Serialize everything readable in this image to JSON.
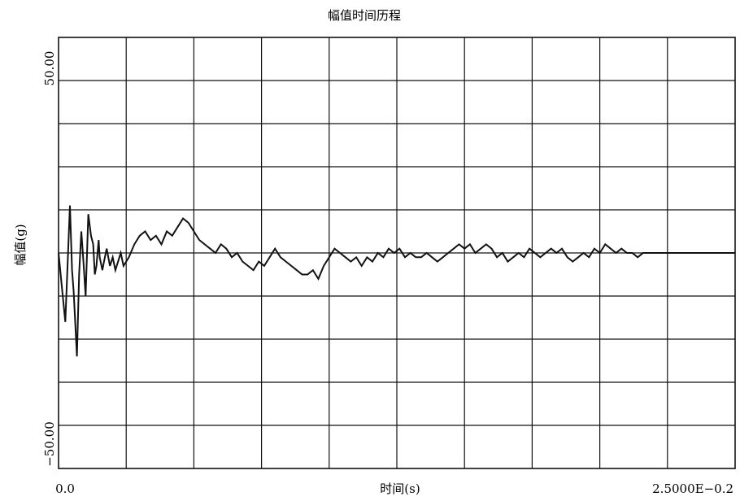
{
  "chart_data": {
    "type": "line",
    "title": "幅值时间历程",
    "xlabel": "时间(s)",
    "ylabel": "幅值(g)",
    "x_tick_labels": [
      "0.0",
      "2.5000E−0.2"
    ],
    "y_tick_labels": [
      "50.00",
      "−50.00"
    ],
    "xlim": [
      0,
      0.025
    ],
    "ylim": [
      -50,
      50
    ],
    "grid": true,
    "x_divisions": 10,
    "y_divisions": 10,
    "line_color": "#111111",
    "series": [
      {
        "x": [
          0.0,
          0.00025,
          0.0003,
          0.00042,
          0.0005,
          0.00056,
          0.00068,
          0.00076,
          0.00084,
          0.00092,
          0.001,
          0.0011,
          0.0012,
          0.00128,
          0.00134,
          0.0014,
          0.00148,
          0.00152,
          0.00162,
          0.00168,
          0.00178,
          0.0019,
          0.002,
          0.0021,
          0.0022,
          0.0023,
          0.0024,
          0.0025,
          0.0026,
          0.0028,
          0.003,
          0.0032,
          0.0034,
          0.0036,
          0.0038,
          0.004,
          0.0042,
          0.0044,
          0.0046,
          0.0048,
          0.005,
          0.0052,
          0.0054,
          0.0056,
          0.0058,
          0.006,
          0.0062,
          0.0064,
          0.0066,
          0.0068,
          0.007,
          0.0072,
          0.0074,
          0.0076,
          0.0078,
          0.008,
          0.0082,
          0.0084,
          0.0086,
          0.0088,
          0.009,
          0.0092,
          0.0094,
          0.0096,
          0.0098,
          0.01,
          0.0102,
          0.0104,
          0.0106,
          0.0108,
          0.011,
          0.0112,
          0.0114,
          0.0116,
          0.0118,
          0.012,
          0.0122,
          0.0124,
          0.0126,
          0.0128,
          0.013,
          0.0132,
          0.0134,
          0.0136,
          0.0138,
          0.014,
          0.0142,
          0.0144,
          0.0146,
          0.0148,
          0.015,
          0.0152,
          0.0154,
          0.0156,
          0.0158,
          0.016,
          0.0162,
          0.0164,
          0.0166,
          0.0168,
          0.017,
          0.0172,
          0.0174,
          0.0176,
          0.0178,
          0.018,
          0.0182,
          0.0184,
          0.0186,
          0.0188,
          0.019,
          0.0192,
          0.0194,
          0.0196,
          0.0198,
          0.02,
          0.0202,
          0.0204,
          0.0206,
          0.0208,
          0.021,
          0.0212,
          0.0214,
          0.0216,
          0.0218,
          0.022,
          0.0222,
          0.0224,
          0.0226,
          0.0228,
          0.023,
          0.0232,
          0.0234,
          0.0236,
          0.0238,
          0.024,
          0.0242,
          0.0244,
          0.0246,
          0.0248,
          0.025
        ],
        "values": [
          0,
          -16,
          -8,
          11,
          -4,
          -9,
          -24,
          -5,
          5,
          -2,
          -10,
          9,
          4,
          2,
          -5,
          -3,
          3,
          -1,
          -4,
          -2,
          1,
          -3,
          -1,
          -4,
          -2,
          0,
          -3,
          -2,
          -1,
          2,
          4,
          5,
          3,
          4,
          2,
          5,
          4,
          6,
          8,
          7,
          5,
          3,
          2,
          1,
          0,
          2,
          1,
          -1,
          0,
          -2,
          -3,
          -4,
          -2,
          -3,
          -1,
          1,
          -1,
          -2,
          -3,
          -4,
          -5,
          -5,
          -4,
          -6,
          -3,
          -1,
          1,
          0,
          -1,
          -2,
          -1,
          -3,
          -1,
          -2,
          0,
          -1,
          1,
          0,
          1,
          -1,
          0,
          -1,
          -1,
          0,
          -1,
          -2,
          -1,
          0,
          1,
          2,
          1,
          2,
          0,
          1,
          2,
          1,
          -1,
          0,
          -2,
          -1,
          0,
          -1,
          1,
          0,
          -1,
          0,
          1,
          0,
          1,
          -1,
          -2,
          -1,
          0,
          -1,
          1,
          0,
          2,
          1,
          0,
          1,
          0,
          0,
          -1,
          0,
          0,
          0,
          0,
          0,
          0,
          0,
          0,
          0,
          0,
          0,
          0,
          0,
          0,
          0,
          0,
          0,
          0
        ]
      }
    ]
  }
}
